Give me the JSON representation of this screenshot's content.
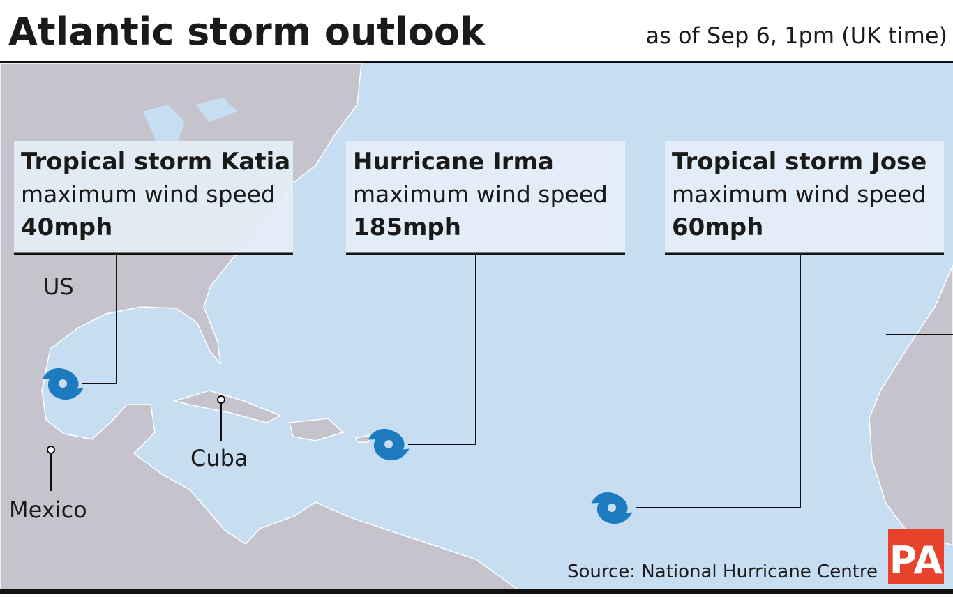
{
  "header": {
    "title": "Atlantic storm outlook",
    "subtitle": "as of Sep 6, 1pm (UK time)"
  },
  "storms": [
    {
      "name": "Tropical storm Katia",
      "label": "maximum wind speed",
      "speed": "40mph"
    },
    {
      "name": "Hurricane Irma",
      "label": "maximum wind speed",
      "speed": "185mph"
    },
    {
      "name": "Tropical storm Jose",
      "label": "maximum wind speed",
      "speed": "60mph"
    }
  ],
  "places": [
    "US",
    "Cuba",
    "Mexico"
  ],
  "footer": {
    "source": "Source: National Hurricane Centre",
    "logo": "PA"
  }
}
